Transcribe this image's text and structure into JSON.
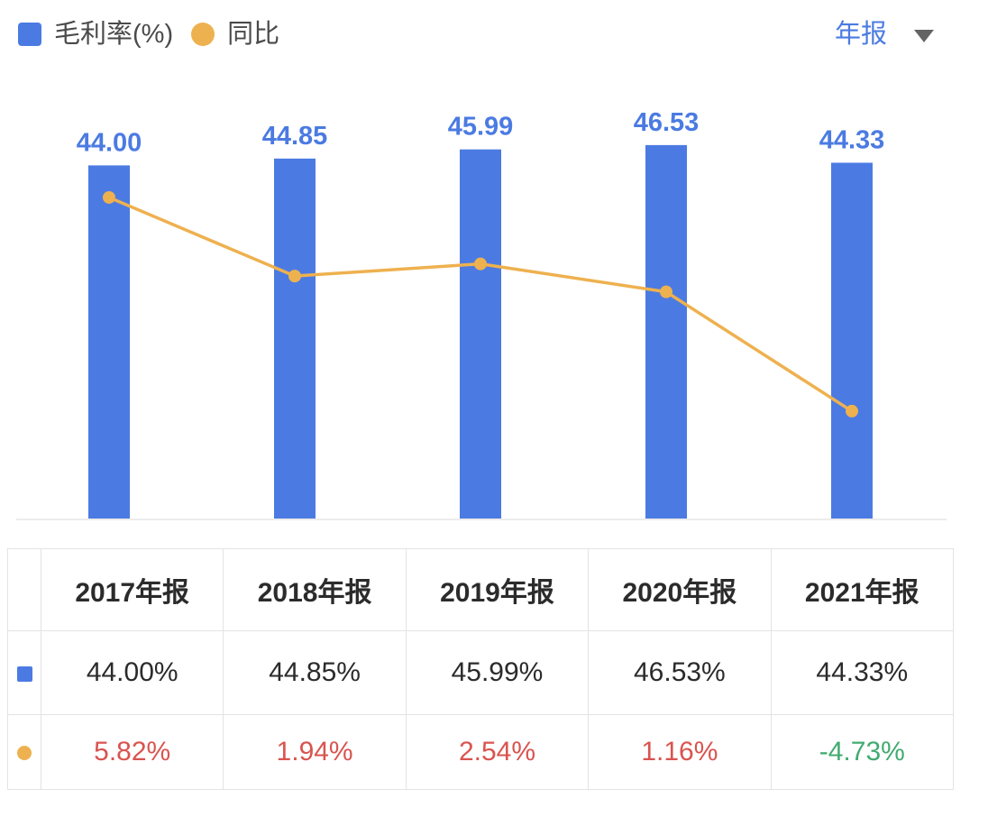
{
  "legend": {
    "series": [
      {
        "label": "毛利率(%)",
        "swatch": "square",
        "color": "#4b7be2"
      },
      {
        "label": "同比",
        "swatch": "circle",
        "color": "#eeb14f"
      }
    ]
  },
  "period_selector": {
    "label": "年报"
  },
  "chart_data": {
    "type": "bar+line",
    "categories": [
      "2017年报",
      "2018年报",
      "2019年报",
      "2020年报",
      "2021年报"
    ],
    "series": [
      {
        "name": "毛利率(%)",
        "type": "bar",
        "values": [
          44.0,
          44.85,
          45.99,
          46.53,
          44.33
        ],
        "labels": [
          "44.00",
          "44.85",
          "45.99",
          "46.53",
          "44.33"
        ],
        "unit": "%",
        "color": "#4b7be2"
      },
      {
        "name": "同比",
        "type": "line",
        "values": [
          5.82,
          1.94,
          2.54,
          1.16,
          -4.73
        ],
        "unit": "%",
        "color": "#eeb14f"
      }
    ],
    "title": "",
    "xlabel": "",
    "ylabel": "",
    "grid": false,
    "axes_visible": false,
    "value_labels_on": "bars",
    "legend_position": "top-left",
    "bar_axis_min": 0
  },
  "table": {
    "headers": [
      "2017年报",
      "2018年报",
      "2019年报",
      "2020年报",
      "2021年报"
    ],
    "rows": [
      {
        "swatch": "square",
        "color": "#4b7be2",
        "values": [
          "44.00%",
          "44.85%",
          "45.99%",
          "46.53%",
          "44.33%"
        ],
        "value_colors": [
          "dark",
          "dark",
          "dark",
          "dark",
          "dark"
        ]
      },
      {
        "swatch": "circle",
        "color": "#eeb14f",
        "values": [
          "5.82%",
          "1.94%",
          "2.54%",
          "1.16%",
          "-4.73%"
        ],
        "value_colors": [
          "red",
          "red",
          "red",
          "red",
          "green"
        ]
      }
    ]
  },
  "colors": {
    "blue": "#4b7be2",
    "orange": "#eeb14f",
    "red": "#d9544f",
    "green": "#42ab70",
    "dark": "#2b2b2b",
    "baseline": "#ececec",
    "border": "#e3e3e3"
  }
}
